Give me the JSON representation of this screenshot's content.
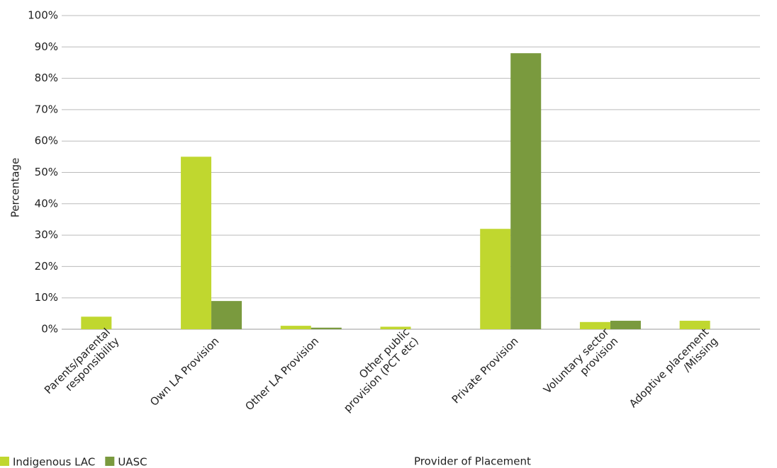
{
  "chart_data": {
    "type": "bar",
    "x_label": "Provider of Placement",
    "y_label": "Percentage",
    "categories": [
      "Parents/parental\nresponsibility",
      "Own LA Provision",
      "Other LA Provision",
      "Other public\nprovision (PCT etc)",
      "Private Provision",
      "Voluntary sector\nprovision",
      "Adoptive placement\n/Missing"
    ],
    "series": [
      {
        "name": "Indigenous LAC",
        "color": "#c0d72f",
        "values": [
          4,
          55,
          1.1,
          0.8,
          32,
          2.3,
          2.7
        ]
      },
      {
        "name": "UASC",
        "color": "#7a9a3e",
        "values": [
          0,
          9,
          0.5,
          0,
          88,
          2.7,
          0
        ]
      }
    ],
    "ylim": [
      0,
      100
    ],
    "yticks": [
      {
        "value": 0,
        "label": "0%"
      },
      {
        "value": 10,
        "label": "10%"
      },
      {
        "value": 20,
        "label": "20%"
      },
      {
        "value": 30,
        "label": "30%"
      },
      {
        "value": 40,
        "label": "40%"
      },
      {
        "value": 50,
        "label": "50%"
      },
      {
        "value": 60,
        "label": "60%"
      },
      {
        "value": 70,
        "label": "70%"
      },
      {
        "value": 80,
        "label": "80%"
      },
      {
        "value": 90,
        "label": "90%"
      },
      {
        "value": 100,
        "label": "100%"
      }
    ],
    "grid": true,
    "legend": "bottom-left"
  }
}
